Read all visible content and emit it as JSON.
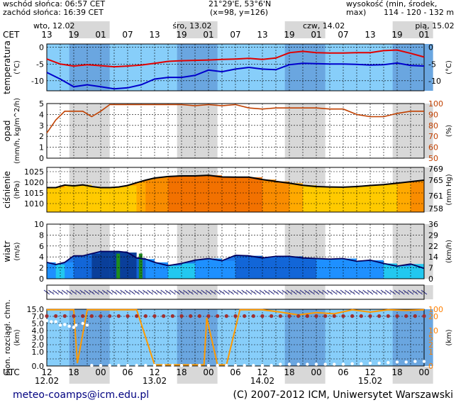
{
  "header": {
    "sunrise": "wschód słońca: 06:57 CET",
    "sunset": "zachód słońca: 16:39 CET",
    "coords": "21°29'E, 53°6'N",
    "grid": "(x=98, y=126)",
    "elevation_label": "wysokość (min, środek, max)",
    "elevation_values": "114 - 120 - 132 m"
  },
  "time_axis": {
    "top_tz": "CET",
    "bottom_tz": "UTC",
    "top_days": [
      "wto, 12.02",
      "śro, 13.02",
      "czw, 14.02",
      "pią, 15.02"
    ],
    "top_hours": [
      "13",
      "19",
      "01",
      "07",
      "13",
      "19",
      "01",
      "07",
      "13",
      "19",
      "01",
      "07",
      "13",
      "19",
      "01"
    ],
    "bottom_hours": [
      "12",
      "18",
      "00",
      "06",
      "12",
      "18",
      "00",
      "06",
      "12",
      "18",
      "00",
      "06",
      "12",
      "18",
      "00"
    ],
    "bottom_dates": [
      "12.02",
      "13.02",
      "14.02",
      "15.02"
    ]
  },
  "footer": {
    "email": "meteo-coamps@icm.edu.pl",
    "copyright": "(C) 2007-2012 ICM, Uniwersytet Warszawski"
  },
  "colors": {
    "temp_max": "#e00000",
    "temp_min": "#0000cc",
    "humidity": "#c04000",
    "pressure_line": "#000000",
    "wind_line": "#000060",
    "cloud_line": "#ff9a00",
    "cloud_dots": "#a03030",
    "vis_dots": "#ffffff"
  },
  "chart_data": [
    {
      "type": "line",
      "panel": "temperature",
      "ylabel_left": "temperatura",
      "unit_left": "(°C)",
      "unit_right": "(°C)",
      "yticks_left": [
        "0",
        "-5",
        "-10"
      ],
      "yticks_right": [
        "0",
        "-5",
        "-10"
      ],
      "ylim": [
        -13,
        1
      ],
      "x_hours": [
        0,
        3,
        6,
        9,
        12,
        15,
        18,
        21,
        24,
        27,
        30,
        33,
        36,
        39,
        42,
        45,
        48,
        51,
        54,
        57,
        60,
        63,
        66,
        69,
        72,
        75,
        78,
        81,
        84
      ],
      "series": [
        {
          "key": "tmax",
          "values": [
            -3.5,
            -5,
            -5.6,
            -5.2,
            -5.5,
            -5.8,
            -5.6,
            -5.3,
            -4.8,
            -4.2,
            -4,
            -3.9,
            -3.8,
            -3.6,
            -3.5,
            -3.3,
            -3.6,
            -3.2,
            -1.6,
            -1.2,
            -1.6,
            -1.7,
            -1.7,
            -1.6,
            -1.6,
            -1,
            -0.8,
            -1.8,
            -2.9
          ]
        },
        {
          "key": "tmin",
          "values": [
            -7.5,
            -9.5,
            -11.8,
            -11.2,
            -11.8,
            -12.4,
            -12.1,
            -11.2,
            -9.5,
            -9,
            -9,
            -8.4,
            -6.8,
            -7.3,
            -6.5,
            -6,
            -6.5,
            -6.7,
            -5.2,
            -4.8,
            -4.9,
            -5,
            -5,
            -5.1,
            -5.3,
            -5.2,
            -4.7,
            -5.4,
            -5.6
          ]
        }
      ]
    },
    {
      "type": "line",
      "panel": "precipitation",
      "ylabel_left": "opad",
      "unit_left": "(mm/h, kg/m^2/h)",
      "unit_right": "(%)",
      "yticks_left": [
        "5",
        "4",
        "3",
        "2",
        "1",
        "0"
      ],
      "yticks_right": [
        "100",
        "90",
        "80",
        "70",
        "60",
        "50"
      ],
      "ylim": [
        0,
        5
      ],
      "precip_values": [],
      "series": [
        {
          "key": "humidity",
          "x_hours": [
            0,
            2,
            4,
            6,
            8,
            10,
            12,
            14,
            16,
            18,
            20,
            22,
            24,
            27,
            30,
            33,
            36,
            39,
            42,
            45,
            48,
            51,
            54,
            57,
            60,
            63,
            66,
            69,
            72,
            75,
            78,
            81,
            84
          ],
          "values": [
            73,
            85,
            93,
            93,
            93,
            88,
            93,
            99,
            99,
            99,
            99,
            99,
            99,
            99,
            99,
            98,
            99,
            98,
            99,
            96,
            95,
            96,
            96,
            96,
            96,
            95,
            95,
            90,
            88,
            88,
            91,
            93,
            93
          ]
        }
      ]
    },
    {
      "type": "area",
      "panel": "pressure",
      "ylabel_left": "ciśnienie",
      "unit_left": "(hPa)",
      "unit_right": "(mm Hg)",
      "yticks_left": [
        "1025",
        "1020",
        "1015",
        "1010"
      ],
      "yticks_right": [
        "769",
        "765",
        "761",
        "758"
      ],
      "ylim": [
        1006,
        1027
      ],
      "x_hours": [
        0,
        2,
        4,
        6,
        8,
        10,
        12,
        14,
        16,
        18,
        20,
        22,
        24,
        27,
        30,
        33,
        36,
        39,
        42,
        45,
        48,
        51,
        54,
        57,
        60,
        63,
        66,
        69,
        72,
        75,
        78,
        81,
        84
      ],
      "values": [
        1017.5,
        1017.5,
        1018.7,
        1018.3,
        1018.8,
        1018,
        1017.5,
        1017.5,
        1017.8,
        1018.5,
        1019.8,
        1021,
        1022,
        1022.7,
        1023,
        1023,
        1023.3,
        1022.5,
        1022.4,
        1022.4,
        1021.3,
        1020.4,
        1019.6,
        1018.6,
        1018,
        1017.8,
        1017.7,
        1018,
        1018.5,
        1018.9,
        1019.6,
        1020.3,
        1021
      ]
    },
    {
      "type": "area",
      "panel": "wind",
      "ylabel_left": "wiatr",
      "unit_left": "(m/s)",
      "unit_right": "(km/h)",
      "yticks_left": [
        "10",
        "8",
        "6",
        "4",
        "2",
        "0"
      ],
      "yticks_right": [
        "36",
        "29",
        "22",
        "14",
        "7",
        "0"
      ],
      "ylim": [
        0,
        10
      ],
      "x_hours": [
        0,
        2,
        4,
        6,
        8,
        10,
        12,
        14,
        16,
        18,
        20,
        22,
        24,
        27,
        30,
        33,
        36,
        39,
        42,
        45,
        48,
        51,
        54,
        57,
        60,
        63,
        66,
        69,
        72,
        75,
        78,
        81,
        84
      ],
      "values": [
        3,
        2.6,
        3,
        4.2,
        4.2,
        4.6,
        5,
        5,
        5,
        4.8,
        3.8,
        3.6,
        3,
        2.4,
        2.8,
        3.4,
        3.7,
        3.3,
        4.3,
        4.2,
        3.8,
        4.1,
        4.1,
        3.8,
        3.7,
        3.6,
        3.7,
        3.2,
        3.4,
        2.8,
        2.3,
        2.7,
        1.9
      ]
    },
    {
      "type": "line",
      "panel": "cloud_visibility",
      "ylabel_left": "pion. rozciągł. chm.",
      "unit_left": "(km)",
      "unit_right": "(km)",
      "yticks_left": [
        "15.0",
        "7.0",
        "5.0",
        "4.0",
        "3.0",
        "2.0",
        "1.0",
        "0.0"
      ],
      "yticks_right": [
        "100",
        "20",
        "10",
        "5",
        "2",
        "1",
        "0"
      ],
      "ylim": [
        0,
        100
      ],
      "series": [
        {
          "key": "cloud_cover",
          "x_hours": [
            0,
            1,
            5,
            6,
            6.8,
            9,
            12,
            16,
            20,
            24,
            28,
            33,
            35,
            35.6,
            38,
            40,
            43,
            44.5,
            48,
            52,
            56,
            60,
            64,
            68,
            72,
            76,
            80,
            84
          ],
          "values": [
            99,
            99,
            99,
            99,
            5,
            99,
            99,
            99,
            99,
            2,
            2,
            2,
            2,
            85,
            2,
            2,
            99,
            99,
            99,
            95,
            90,
            94,
            92,
            99,
            95,
            99,
            98,
            99
          ]
        },
        {
          "key": "cloud_dots",
          "x_hours": [
            0,
            2,
            4,
            6,
            8,
            10,
            12,
            14,
            16,
            18,
            20,
            22,
            24,
            26,
            28,
            30,
            32,
            34,
            36,
            38,
            40,
            42,
            44,
            46,
            48,
            50,
            52,
            54,
            56,
            58,
            60,
            62,
            64,
            66,
            68,
            70,
            72,
            74,
            76,
            78,
            80,
            82,
            84
          ],
          "values": [
            88,
            88,
            88,
            88,
            88,
            88,
            88,
            88,
            88,
            88,
            88,
            88,
            88,
            88,
            88,
            88,
            88,
            88,
            88,
            88,
            88,
            88,
            88,
            88,
            88,
            88,
            88,
            88,
            88,
            88,
            88,
            88,
            88,
            88,
            88,
            88,
            88,
            88,
            88,
            88,
            88,
            88,
            88
          ]
        },
        {
          "key": "visibility",
          "x_hours": [
            0,
            1,
            2,
            3,
            4,
            5,
            6,
            6.5,
            8,
            9,
            10,
            12,
            14,
            16,
            18,
            20,
            22,
            24,
            26,
            28,
            30,
            32,
            34,
            36,
            38,
            40,
            42,
            44,
            46,
            48,
            50,
            52,
            54,
            56,
            58,
            60,
            62,
            64,
            66,
            68,
            70,
            72,
            74,
            76,
            78,
            80,
            82,
            84
          ],
          "values": [
            80,
            78,
            78,
            72,
            73,
            70,
            68,
            72,
            75,
            72,
            1,
            1,
            1,
            1,
            1,
            1,
            1,
            1,
            1,
            1,
            1,
            1,
            1,
            1,
            1,
            1,
            1,
            1,
            1,
            1,
            1,
            3,
            3,
            3,
            3,
            3,
            3,
            3,
            3,
            4,
            4,
            5,
            5,
            6,
            7,
            7,
            8,
            8
          ]
        }
      ]
    }
  ]
}
